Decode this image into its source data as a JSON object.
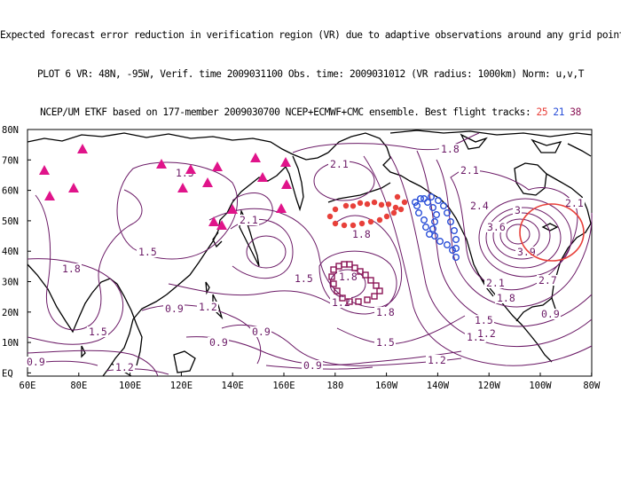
{
  "header": {
    "line1": "Expected forecast error reduction in verification region (VR) due to adaptive observations around any grid point.",
    "line2": "PLOT 6 VR: 48N, -95W, Verif. time 2009031100 Obs. time: 2009031012 (VR radius: 1000km) Norm: u,v,T",
    "line3_prefix": "NCEP/UM ETKF based on 177-member 2009030700 NCEP+ECMWF+CMC ensemble. Best flight tracks:",
    "track_a": "25",
    "track_b": "21",
    "track_c": "38"
  },
  "axes": {
    "lat_labels": [
      "80N",
      "70N",
      "60N",
      "50N",
      "40N",
      "30N",
      "20N",
      "10N",
      "EQ"
    ],
    "lon_labels": [
      "60E",
      "80E",
      "100E",
      "120E",
      "140E",
      "160E",
      "180",
      "160W",
      "140W",
      "120W",
      "100W",
      "80W"
    ]
  },
  "contour_labels": [
    "1.8",
    "2.1",
    "1.5",
    "2.1",
    "2.1",
    "1.8",
    "2.4",
    "3",
    "3.6",
    "3.9",
    "2.1",
    "1.8",
    "2.1",
    "2.7",
    "1.5",
    "1.8",
    "1.5",
    "1.2",
    "0.9",
    "1.2",
    "0.9",
    "1.5",
    "1.8",
    "1.2",
    "1.8",
    "1.5",
    "0.9",
    "1.2",
    "0.9",
    "1.2",
    "0.9",
    "0.9",
    "1.5",
    "1.2"
  ],
  "colors": {
    "contour": "#6b1a66",
    "coast": "#000000",
    "triangles": "#e0148a",
    "track_red": "#e8403a",
    "track_blue": "#2a4fd8",
    "track_purple": "#8a1455",
    "vr_circle": "#e8403a"
  },
  "markers": {
    "triangle_count": 17,
    "verification_region": "48N, -95W"
  }
}
